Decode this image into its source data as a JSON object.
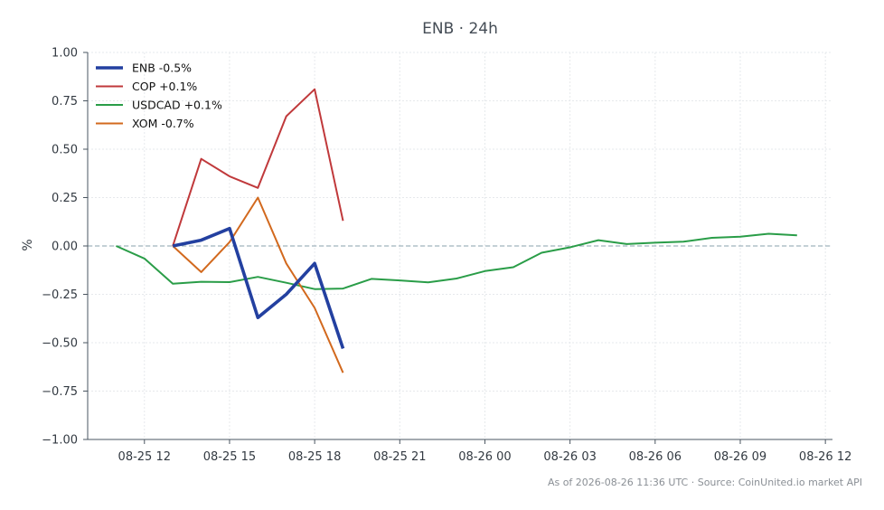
{
  "chart_data": {
    "type": "line",
    "title": "ENB · 24h",
    "ylabel": "%",
    "xlabel": "",
    "ylim": [
      -1.0,
      1.0
    ],
    "yticks": [
      1.0,
      0.75,
      0.5,
      0.25,
      0.0,
      -0.25,
      -0.5,
      -0.75,
      -1.0
    ],
    "ytick_labels": [
      "1.00",
      "0.75",
      "0.50",
      "0.25",
      "0.00",
      "−0.25",
      "−0.50",
      "−0.75",
      "−1.00"
    ],
    "xlim": [
      "2026-08-25 10:00",
      "2026-08-26 12:15"
    ],
    "xtick_labels": [
      "08-25 12",
      "08-25 15",
      "08-25 18",
      "08-25 21",
      "08-26 00",
      "08-26 03",
      "08-26 06",
      "08-26 09",
      "08-26 12"
    ],
    "xticks": [
      "2026-08-25 12:00",
      "2026-08-25 15:00",
      "2026-08-25 18:00",
      "2026-08-25 21:00",
      "2026-08-26 00:00",
      "2026-08-26 03:00",
      "2026-08-26 06:00",
      "2026-08-26 09:00",
      "2026-08-26 12:00"
    ],
    "grid": true,
    "reference_line": 0,
    "legend_position": "top-left",
    "series": [
      {
        "name": "ENB -0.5%",
        "color": "#2340a0",
        "x": [
          "2026-08-25 13:00",
          "2026-08-25 14:00",
          "2026-08-25 15:00",
          "2026-08-25 16:00",
          "2026-08-25 17:00",
          "2026-08-25 18:00",
          "2026-08-25 19:00"
        ],
        "y": [
          0.0,
          0.03,
          0.09,
          -0.37,
          -0.25,
          -0.09,
          -0.53
        ]
      },
      {
        "name": "COP +0.1%",
        "color": "#c0393b",
        "x": [
          "2026-08-25 13:00",
          "2026-08-25 14:00",
          "2026-08-25 15:00",
          "2026-08-25 16:00",
          "2026-08-25 17:00",
          "2026-08-25 18:00",
          "2026-08-25 19:00"
        ],
        "y": [
          0.0,
          0.45,
          0.36,
          0.3,
          0.67,
          0.81,
          0.13
        ]
      },
      {
        "name": "USDCAD +0.1%",
        "color": "#2a9d48",
        "x": [
          "2026-08-25 11:00",
          "2026-08-25 12:00",
          "2026-08-25 13:00",
          "2026-08-25 14:00",
          "2026-08-25 15:00",
          "2026-08-25 16:00",
          "2026-08-25 17:00",
          "2026-08-25 18:00",
          "2026-08-25 19:00",
          "2026-08-25 20:00",
          "2026-08-25 21:00",
          "2026-08-25 22:00",
          "2026-08-25 23:00",
          "2026-08-26 00:00",
          "2026-08-26 01:00",
          "2026-08-26 02:00",
          "2026-08-26 03:00",
          "2026-08-26 04:00",
          "2026-08-26 05:00",
          "2026-08-26 06:00",
          "2026-08-26 07:00",
          "2026-08-26 08:00",
          "2026-08-26 09:00",
          "2026-08-26 10:00",
          "2026-08-26 11:00"
        ],
        "y": [
          0.0,
          -0.065,
          -0.195,
          -0.185,
          -0.187,
          -0.16,
          -0.19,
          -0.223,
          -0.22,
          -0.17,
          -0.178,
          -0.188,
          -0.168,
          -0.13,
          -0.11,
          -0.035,
          -0.007,
          0.03,
          0.01,
          0.017,
          0.022,
          0.042,
          0.048,
          0.063,
          0.055
        ]
      },
      {
        "name": "XOM -0.7%",
        "color": "#d2691e",
        "x": [
          "2026-08-25 13:00",
          "2026-08-25 14:00",
          "2026-08-25 15:00",
          "2026-08-25 16:00",
          "2026-08-25 17:00",
          "2026-08-25 18:00",
          "2026-08-25 19:00"
        ],
        "y": [
          0.0,
          -0.135,
          0.02,
          0.25,
          -0.09,
          -0.32,
          -0.655
        ]
      }
    ]
  },
  "footer": "As of 2026-08-26 11:36 UTC · Source: CoinUnited.io market API"
}
